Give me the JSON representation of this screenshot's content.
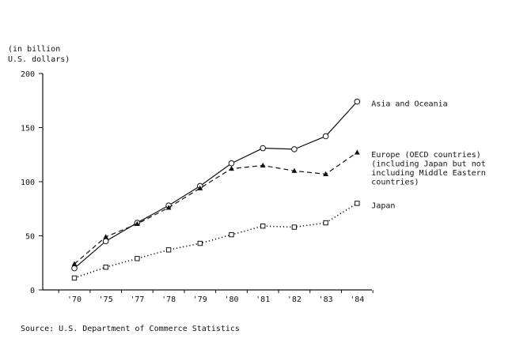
{
  "chart_data": {
    "type": "line",
    "title": "",
    "ylabel": "(in billion\nU.S. dollars)",
    "xlabel": "",
    "categories": [
      "'70",
      "'75",
      "'77",
      "'78",
      "'79",
      "'80",
      "'81",
      "'82",
      "'83",
      "'84"
    ],
    "yticks": [
      0,
      50,
      100,
      150,
      200
    ],
    "ylim": [
      0,
      200
    ],
    "grid": false,
    "legend_placement": "right, next to line ends",
    "series": [
      {
        "name": "Asia and Oceania",
        "label_lines": [
          "Asia and Oceania"
        ],
        "style": "solid",
        "marker": "circle",
        "values": [
          20,
          45,
          62,
          78,
          96,
          117,
          131,
          130,
          142,
          174
        ]
      },
      {
        "name": "Europe (OECD countries) (including Japan but not including Middle Eastern countries)",
        "label_lines": [
          "Europe (OECD countries)",
          "(including Japan but not",
          "including Middle Eastern",
          "countries)"
        ],
        "style": "dashed",
        "marker": "triangle",
        "values": [
          24,
          49,
          61,
          76,
          94,
          112,
          115,
          110,
          107,
          127
        ]
      },
      {
        "name": "Japan",
        "label_lines": [
          "Japan"
        ],
        "style": "dotted",
        "marker": "square",
        "values": [
          11,
          21,
          29,
          37,
          43,
          51,
          59,
          58,
          62,
          80
        ]
      }
    ]
  },
  "source": "Source: U.S. Department of Commerce Statistics",
  "colors": {
    "ink": "#111111",
    "background": "#ffffff"
  }
}
